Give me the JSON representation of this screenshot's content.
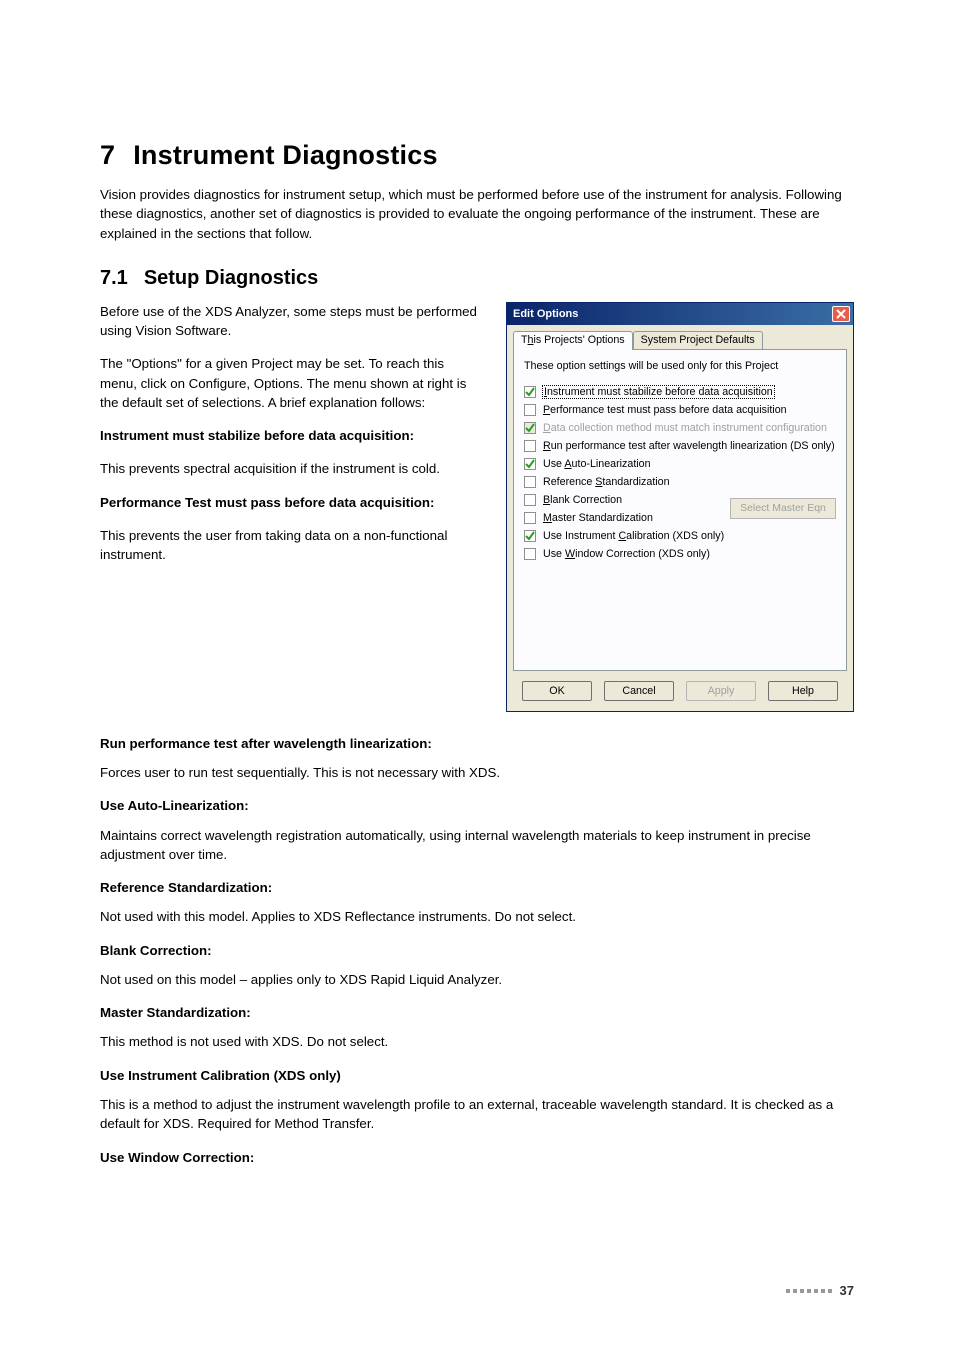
{
  "heading": {
    "num": "7",
    "title": "Instrument Diagnostics"
  },
  "intro": "Vision provides diagnostics for instrument setup, which must be performed before use of the instrument for analysis. Following these diagnostics, another set of diagnostics is provided to evaluate the ongoing performance of the instrument. These are explained in the sections that follow.",
  "sub": {
    "num": "7.1",
    "title": "Setup Diagnostics"
  },
  "left": {
    "p1": "Before use of the XDS Analyzer, some steps must be performed using Vision Software.",
    "p2": "The \"Options\" for a given Project may be set. To reach this menu, click on Configure, Options. The menu shown at right is the default set of selections. A brief explanation follows:",
    "s1": "Instrument must stabilize before data acquisition:",
    "p3": "This prevents spectral acquisition if the instrument is cold.",
    "s2": "Performance Test must pass before data acquisition:",
    "p4": "This prevents the user from taking data on a non-functional instrument."
  },
  "lower": {
    "s3": "Run performance test after wavelength linearization:",
    "p5": "Forces user to run test sequentially. This is not necessary with XDS.",
    "s4": "Use Auto-Linearization:",
    "p6": "Maintains correct wavelength registration automatically, using internal wavelength materials to keep instrument in precise adjustment over time.",
    "s5": "Reference Standardization:",
    "p7": "Not used with this model. Applies to XDS Reflectance instruments. Do not select.",
    "s6": "Blank Correction:",
    "p8": "Not used on this model – applies only to XDS Rapid Liquid Analyzer.",
    "s7": "Master Standardization:",
    "p9": "This method is not used with XDS. Do not select.",
    "s8": "Use Instrument Calibration (XDS only)",
    "p10": "This is a method to adjust the instrument wavelength profile to an external, traceable wavelength standard. It is checked as a default for XDS. Required for Method Transfer.",
    "s9": "Use Window Correction:"
  },
  "dialog": {
    "title": "Edit Options",
    "tab_active_pre": "T",
    "tab_active_u": "h",
    "tab_active_post": "is Projects' Options",
    "tab_inactive": "System Project Defaults",
    "desc": "These option settings will be used only for this Project",
    "opts": [
      {
        "checked": true,
        "disabled": false,
        "focus": true,
        "u": "I",
        "post": "nstrument must stabilize before data acquisition"
      },
      {
        "checked": false,
        "disabled": false,
        "focus": false,
        "u": "P",
        "post": "erformance test must pass before data acquisition"
      },
      {
        "checked": true,
        "disabled": true,
        "focus": false,
        "u": "D",
        "post": "ata collection method must match instrument configuration"
      },
      {
        "checked": false,
        "disabled": false,
        "focus": false,
        "u": "R",
        "post": "un performance test after wavelength linearization (DS only)"
      },
      {
        "checked": true,
        "disabled": false,
        "focus": false,
        "pre": "Use ",
        "u": "A",
        "post": "uto-Linearization"
      },
      {
        "checked": false,
        "disabled": false,
        "focus": false,
        "pre": "Reference ",
        "u": "S",
        "post": "tandardization"
      },
      {
        "checked": false,
        "disabled": false,
        "focus": false,
        "u": "B",
        "post": "lank Correction"
      },
      {
        "checked": false,
        "disabled": false,
        "focus": false,
        "u": "M",
        "post": "aster Standardization"
      },
      {
        "checked": true,
        "disabled": false,
        "focus": false,
        "pre": "Use Instrument ",
        "u": "C",
        "post": "alibration (XDS only)"
      },
      {
        "checked": false,
        "disabled": false,
        "focus": false,
        "pre": "Use ",
        "u": "W",
        "post": "indow Correction (XDS only)"
      }
    ],
    "select_master": "Select Master Eqn",
    "buttons": {
      "ok": "OK",
      "cancel": "Cancel",
      "apply": "Apply",
      "help": "Help"
    }
  },
  "pagenum": "37"
}
